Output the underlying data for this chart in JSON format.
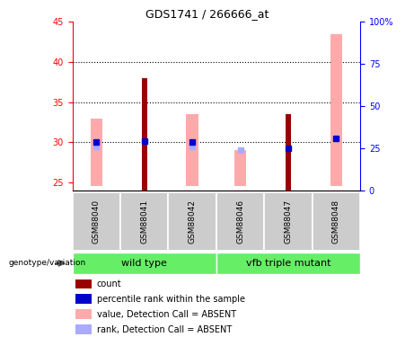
{
  "title": "GDS1741 / 266666_at",
  "samples": [
    "GSM88040",
    "GSM88041",
    "GSM88042",
    "GSM88046",
    "GSM88047",
    "GSM88048"
  ],
  "ylim_left": [
    24,
    45
  ],
  "ylim_right": [
    0,
    100
  ],
  "yticks_left": [
    25,
    30,
    35,
    40,
    45
  ],
  "yticks_right": [
    0,
    25,
    50,
    75,
    100
  ],
  "ytick_labels_right": [
    "0",
    "25",
    "50",
    "75",
    "100%"
  ],
  "dotted_lines": [
    30,
    35,
    40
  ],
  "bar_bottom": 24,
  "count_values": [
    null,
    38.0,
    null,
    null,
    33.5,
    null
  ],
  "percentile_values": [
    30.0,
    30.2,
    30.0,
    null,
    29.3,
    30.5
  ],
  "absent_value_bars_top": [
    33.0,
    null,
    33.5,
    29.0,
    null,
    43.5
  ],
  "absent_value_bars_bottom": [
    24.5,
    null,
    24.5,
    24.5,
    null,
    24.5
  ],
  "absent_rank_markers": [
    29.5,
    null,
    29.5,
    29.0,
    null,
    null
  ],
  "color_count": "#990000",
  "color_percentile": "#0000cc",
  "color_absent_value": "#ffaaaa",
  "color_absent_rank": "#aaaaff",
  "legend_items": [
    {
      "color": "#990000",
      "label": "count"
    },
    {
      "color": "#0000cc",
      "label": "percentile rank within the sample"
    },
    {
      "color": "#ffaaaa",
      "label": "value, Detection Call = ABSENT"
    },
    {
      "color": "#aaaaff",
      "label": "rank, Detection Call = ABSENT"
    }
  ],
  "x_positions": [
    0,
    1,
    2,
    3,
    4,
    5
  ],
  "absent_bar_width": 0.25,
  "count_bar_width": 0.12,
  "marker_size": 4,
  "group_color": "#66ee66",
  "sample_box_color": "#cccccc",
  "bg_color": "#ffffff"
}
